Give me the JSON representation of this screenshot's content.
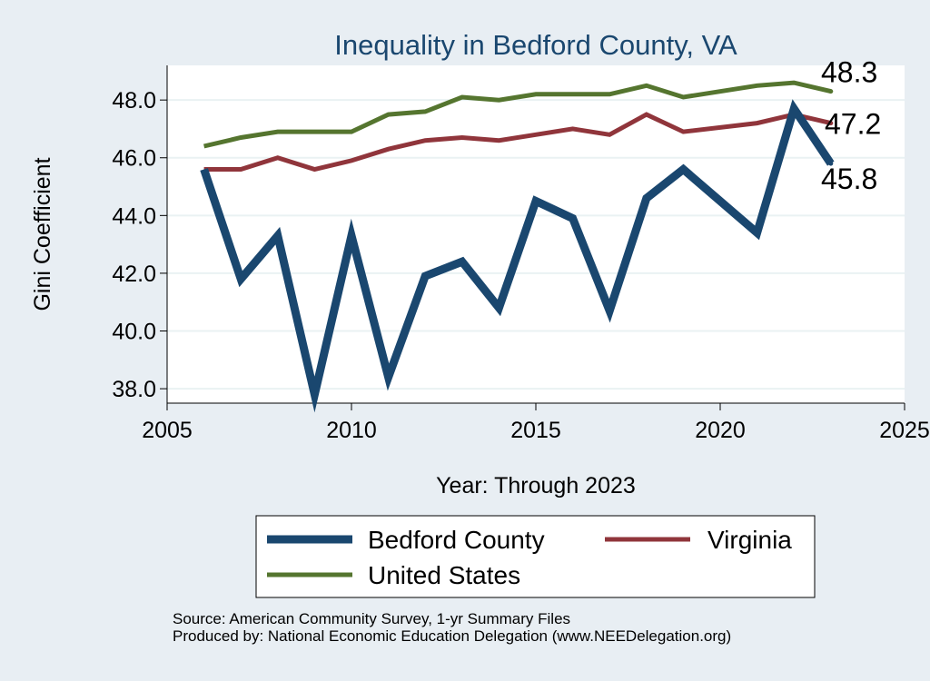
{
  "chart_data": {
    "type": "line",
    "title": "Inequality in Bedford County, VA",
    "xlabel": "Year: Through 2023",
    "ylabel": "Gini Coefficient",
    "xlim": [
      2005,
      2025
    ],
    "ylim": [
      37.5,
      49.2
    ],
    "x_ticks": [
      2005,
      2010,
      2015,
      2020,
      2025
    ],
    "x_tick_labels": [
      "2005",
      "2010",
      "2015",
      "2020",
      "2025"
    ],
    "y_ticks": [
      38,
      40,
      42,
      44,
      46,
      48
    ],
    "y_tick_labels": [
      "38.0",
      "40.0",
      "42.0",
      "44.0",
      "46.0",
      "48.0"
    ],
    "grid": true,
    "legend_position": "bottom",
    "x": [
      2006,
      2007,
      2008,
      2009,
      2010,
      2011,
      2012,
      2013,
      2014,
      2015,
      2016,
      2017,
      2018,
      2019,
      2020,
      2021,
      2022,
      2023
    ],
    "series": [
      {
        "name": "Bedford County",
        "color": "#1a476f",
        "values": [
          45.6,
          41.8,
          43.3,
          37.8,
          43.3,
          38.4,
          41.9,
          42.4,
          40.8,
          44.5,
          43.9,
          40.7,
          44.6,
          45.6,
          null,
          43.4,
          47.7,
          45.8
        ],
        "end_label": "45.8"
      },
      {
        "name": "Virginia",
        "color": "#90353b",
        "values": [
          45.6,
          45.6,
          46.0,
          45.6,
          45.9,
          46.3,
          46.6,
          46.7,
          46.6,
          46.8,
          47.0,
          46.8,
          47.5,
          46.9,
          null,
          47.2,
          47.5,
          47.2
        ],
        "end_label": "47.2"
      },
      {
        "name": "United States",
        "color": "#55752f",
        "values": [
          46.4,
          46.7,
          46.9,
          46.9,
          46.9,
          47.5,
          47.6,
          48.1,
          48.0,
          48.2,
          48.2,
          48.2,
          48.5,
          48.1,
          null,
          48.5,
          48.6,
          48.3
        ],
        "end_label": "48.3"
      }
    ],
    "source_lines": [
      "Source: American Community Survey, 1-yr Summary Files",
      "Produced by: National Economic Education Delegation (www.NEEDelegation.org)"
    ]
  }
}
